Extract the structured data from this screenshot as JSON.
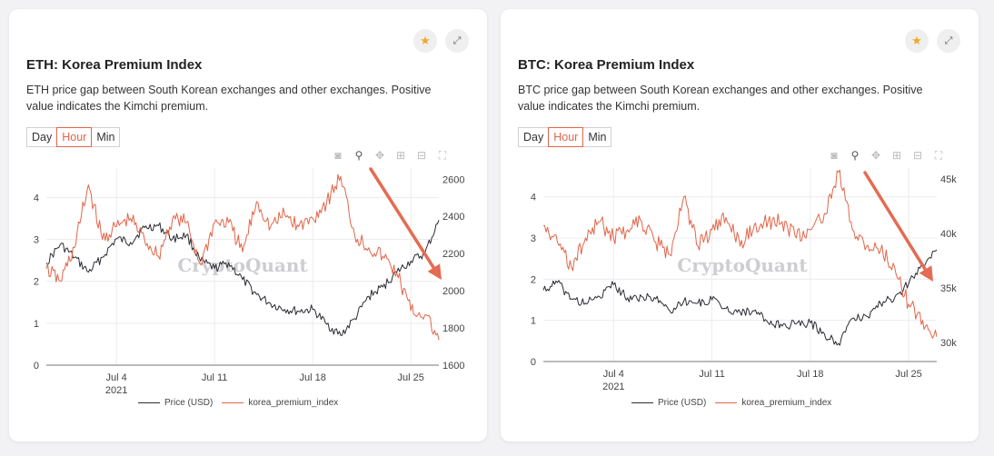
{
  "colors": {
    "price": "#2b2b33",
    "premium": "#e26549",
    "arrow": "#e36c52",
    "star": "#f5a623"
  },
  "icons": [
    "star-icon",
    "expand-icon",
    "camera-icon",
    "zoom-icon",
    "pan-icon",
    "zoom-in-icon",
    "zoom-out-icon",
    "autoscale-icon"
  ],
  "range_options": [
    "Day",
    "Hour",
    "Min"
  ],
  "selected_range": "Hour",
  "watermark": "CryptoQuant",
  "cards": [
    {
      "title": "ETH: Korea Premium Index",
      "description": "ETH price gap between South Korean exchanges and other exchanges. Positive value indicates the Kimchi premium."
    },
    {
      "title": "BTC: Korea Premium Index",
      "description": "BTC price gap between South Korean exchanges and other exchanges. Positive value indicates the Kimchi premium."
    }
  ],
  "chart_data": [
    {
      "type": "line",
      "title": "ETH: Korea Premium Index",
      "x_range": [
        "2021-06-29",
        "2021-07-27"
      ],
      "x_ticks": [
        {
          "date": "2021-07-04",
          "label": "Jul 4",
          "sub": "2021"
        },
        {
          "date": "2021-07-11",
          "label": "Jul 11"
        },
        {
          "date": "2021-07-18",
          "label": "Jul 18"
        },
        {
          "date": "2021-07-25",
          "label": "Jul 25"
        }
      ],
      "y_left": {
        "range": [
          0,
          4.7
        ],
        "ticks": [
          0,
          1,
          2,
          3,
          4
        ],
        "tick_labels": [
          "0",
          "1",
          "2",
          "3",
          "4"
        ]
      },
      "y_right": {
        "range": [
          1600,
          2660
        ],
        "ticks": [
          1600,
          1800,
          2000,
          2200,
          2400,
          2600
        ],
        "tick_labels": [
          "1600",
          "1800",
          "2000",
          "2200",
          "2400",
          "2600"
        ]
      },
      "series": [
        {
          "name": "Price (USD)",
          "axis": "right",
          "points": [
            [
              "2021-06-29",
              2150
            ],
            [
              "2021-06-30",
              2250
            ],
            [
              "2021-07-01",
              2180
            ],
            [
              "2021-07-02",
              2100
            ],
            [
              "2021-07-03",
              2180
            ],
            [
              "2021-07-04",
              2280
            ],
            [
              "2021-07-05",
              2260
            ],
            [
              "2021-07-06",
              2340
            ],
            [
              "2021-07-07",
              2350
            ],
            [
              "2021-07-08",
              2280
            ],
            [
              "2021-07-09",
              2300
            ],
            [
              "2021-07-10",
              2160
            ],
            [
              "2021-07-11",
              2120
            ],
            [
              "2021-07-12",
              2150
            ],
            [
              "2021-07-13",
              2060
            ],
            [
              "2021-07-14",
              1980
            ],
            [
              "2021-07-15",
              1930
            ],
            [
              "2021-07-16",
              1900
            ],
            [
              "2021-07-17",
              1890
            ],
            [
              "2021-07-18",
              1900
            ],
            [
              "2021-07-19",
              1820
            ],
            [
              "2021-07-20",
              1760
            ],
            [
              "2021-07-21",
              1850
            ],
            [
              "2021-07-22",
              1970
            ],
            [
              "2021-07-23",
              2020
            ],
            [
              "2021-07-24",
              2100
            ],
            [
              "2021-07-25",
              2160
            ],
            [
              "2021-07-26",
              2200
            ],
            [
              "2021-07-27",
              2380
            ]
          ]
        },
        {
          "name": "korea_premium_index",
          "axis": "left",
          "points": [
            [
              "2021-06-29",
              2.3
            ],
            [
              "2021-06-30",
              2.0
            ],
            [
              "2021-07-01",
              2.8
            ],
            [
              "2021-07-02",
              4.3
            ],
            [
              "2021-07-03",
              3.0
            ],
            [
              "2021-07-04",
              3.3
            ],
            [
              "2021-07-05",
              3.5
            ],
            [
              "2021-07-06",
              3.0
            ],
            [
              "2021-07-07",
              2.6
            ],
            [
              "2021-07-08",
              3.5
            ],
            [
              "2021-07-09",
              3.4
            ],
            [
              "2021-07-10",
              2.4
            ],
            [
              "2021-07-11",
              3.4
            ],
            [
              "2021-07-12",
              3.4
            ],
            [
              "2021-07-13",
              2.7
            ],
            [
              "2021-07-14",
              3.9
            ],
            [
              "2021-07-15",
              3.3
            ],
            [
              "2021-07-16",
              3.6
            ],
            [
              "2021-07-17",
              3.3
            ],
            [
              "2021-07-18",
              3.5
            ],
            [
              "2021-07-19",
              3.9
            ],
            [
              "2021-07-20",
              4.5
            ],
            [
              "2021-07-21",
              3.1
            ],
            [
              "2021-07-22",
              2.8
            ],
            [
              "2021-07-23",
              2.6
            ],
            [
              "2021-07-24",
              2.2
            ],
            [
              "2021-07-25",
              1.3
            ],
            [
              "2021-07-26",
              1.2
            ],
            [
              "2021-07-27",
              0.6
            ]
          ]
        }
      ]
    },
    {
      "type": "line",
      "title": "BTC: Korea Premium Index",
      "x_range": [
        "2021-06-29",
        "2021-07-27"
      ],
      "x_ticks": [
        {
          "date": "2021-07-04",
          "label": "Jul 4",
          "sub": "2021"
        },
        {
          "date": "2021-07-11",
          "label": "Jul 11"
        },
        {
          "date": "2021-07-18",
          "label": "Jul 18"
        },
        {
          "date": "2021-07-25",
          "label": "Jul 25"
        }
      ],
      "y_left": {
        "range": [
          0,
          4.7
        ],
        "ticks": [
          0,
          1,
          2,
          3,
          4
        ],
        "tick_labels": [
          "0",
          "1",
          "2",
          "3",
          "4"
        ]
      },
      "y_right": {
        "range": [
          28250,
          46000
        ],
        "ticks": [
          30000,
          35000,
          40000,
          45000
        ],
        "tick_labels": [
          "30k",
          "35k",
          "40k",
          "45k"
        ]
      },
      "series": [
        {
          "name": "Price (USD)",
          "axis": "right",
          "points": [
            [
              "2021-06-29",
              34800
            ],
            [
              "2021-06-30",
              35500
            ],
            [
              "2021-07-01",
              34000
            ],
            [
              "2021-07-02",
              33600
            ],
            [
              "2021-07-03",
              34200
            ],
            [
              "2021-07-04",
              35300
            ],
            [
              "2021-07-05",
              34100
            ],
            [
              "2021-07-06",
              34200
            ],
            [
              "2021-07-07",
              34000
            ],
            [
              "2021-07-08",
              32900
            ],
            [
              "2021-07-09",
              33800
            ],
            [
              "2021-07-10",
              33600
            ],
            [
              "2021-07-11",
              33900
            ],
            [
              "2021-07-12",
              33100
            ],
            [
              "2021-07-13",
              32800
            ],
            [
              "2021-07-14",
              32900
            ],
            [
              "2021-07-15",
              31800
            ],
            [
              "2021-07-16",
              31500
            ],
            [
              "2021-07-17",
              31700
            ],
            [
              "2021-07-18",
              31800
            ],
            [
              "2021-07-19",
              30800
            ],
            [
              "2021-07-20",
              29900
            ],
            [
              "2021-07-21",
              32200
            ],
            [
              "2021-07-22",
              32400
            ],
            [
              "2021-07-23",
              33600
            ],
            [
              "2021-07-24",
              34100
            ],
            [
              "2021-07-25",
              35400
            ],
            [
              "2021-07-26",
              37100
            ],
            [
              "2021-07-27",
              38500
            ]
          ]
        },
        {
          "name": "korea_premium_index",
          "axis": "left",
          "points": [
            [
              "2021-06-29",
              3.3
            ],
            [
              "2021-06-30",
              2.9
            ],
            [
              "2021-07-01",
              2.3
            ],
            [
              "2021-07-02",
              3.0
            ],
            [
              "2021-07-03",
              3.4
            ],
            [
              "2021-07-04",
              3.0
            ],
            [
              "2021-07-05",
              3.2
            ],
            [
              "2021-07-06",
              3.4
            ],
            [
              "2021-07-07",
              2.9
            ],
            [
              "2021-07-08",
              2.6
            ],
            [
              "2021-07-09",
              4.0
            ],
            [
              "2021-07-10",
              2.8
            ],
            [
              "2021-07-11",
              3.2
            ],
            [
              "2021-07-12",
              3.5
            ],
            [
              "2021-07-13",
              2.8
            ],
            [
              "2021-07-14",
              3.3
            ],
            [
              "2021-07-15",
              3.4
            ],
            [
              "2021-07-16",
              3.4
            ],
            [
              "2021-07-17",
              3.0
            ],
            [
              "2021-07-18",
              3.2
            ],
            [
              "2021-07-19",
              3.6
            ],
            [
              "2021-07-20",
              4.6
            ],
            [
              "2021-07-21",
              3.2
            ],
            [
              "2021-07-22",
              2.8
            ],
            [
              "2021-07-23",
              2.7
            ],
            [
              "2021-07-24",
              2.3
            ],
            [
              "2021-07-25",
              1.4
            ],
            [
              "2021-07-26",
              1.0
            ],
            [
              "2021-07-27",
              0.6
            ]
          ]
        }
      ]
    }
  ]
}
